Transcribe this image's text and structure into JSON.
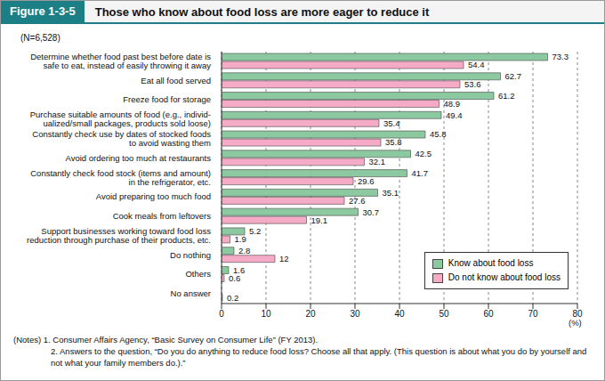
{
  "chart_data": {
    "type": "bar",
    "orientation": "horizontal",
    "figure_label": "Figure 1-3-5",
    "title": "Those who know about food loss are more eager to reduce it",
    "subtitle": "(N=6,528)",
    "categories": [
      "Determine whether food past best before date is\nsafe to eat, instead of easily throwing it away",
      "Eat all food served",
      "Freeze food for storage",
      "Purchase suitable amounts of food (e.g., individ-\nualized/small packages, products sold loose)",
      "Constantly check use by dates of stocked foods\nto avoid wasting them",
      "Avoid ordering too much at restaurants",
      "Constantly check food stock (items and amount)\nin the refrigerator, etc.",
      "Avoid preparing too much food",
      "Cook meals from leftovers",
      "Support businesses working toward food loss\nreduction through purchase of their products, etc.",
      "Do nothing",
      "Others",
      "No answer"
    ],
    "series": [
      {
        "name": "Know about food loss",
        "color": "#8cc9a0",
        "values": [
          73.3,
          62.7,
          61.2,
          49.4,
          45.8,
          42.5,
          41.7,
          35.1,
          30.7,
          5.2,
          2.8,
          1.6,
          null
        ]
      },
      {
        "name": "Do not know about food loss",
        "color": "#f5aac6",
        "values": [
          54.4,
          53.6,
          48.9,
          35.4,
          35.8,
          32.1,
          29.6,
          27.6,
          19.1,
          1.9,
          12.0,
          0.6,
          0.2
        ]
      }
    ],
    "xlim": [
      0,
      80
    ],
    "xticks": [
      0,
      10,
      20,
      30,
      40,
      50,
      60,
      70,
      80
    ],
    "x_label": "(%)",
    "grid": true,
    "data_labels": true,
    "legend": "lower right",
    "notes": [
      "(Notes) 1. Consumer Affairs Agency, “Basic Survey on Consumer Life” (FY 2013).",
      "2. Answers to the question, “Do you do anything to reduce food loss? Choose all that apply. (This question is about what you do by yourself and not what your family members do.).”"
    ]
  }
}
